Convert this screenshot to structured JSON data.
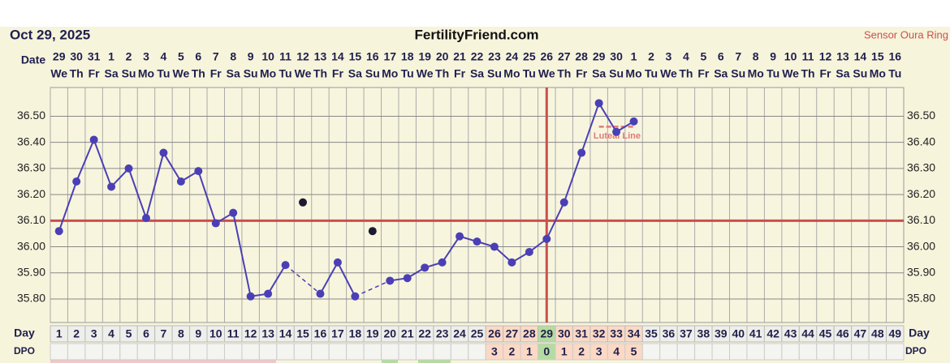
{
  "header": {
    "date": "Oct 29, 2025",
    "site": "FertilityFriend.com",
    "sensor": "Sensor Oura Ring"
  },
  "chart_data": {
    "type": "line",
    "row_labels": {
      "date": "Date",
      "day": "Day",
      "dpo": "DPO"
    },
    "dates": [
      "29",
      "30",
      "31",
      "1",
      "2",
      "3",
      "4",
      "5",
      "6",
      "7",
      "8",
      "9",
      "10",
      "11",
      "12",
      "13",
      "14",
      "15",
      "16",
      "17",
      "18",
      "19",
      "20",
      "21",
      "22",
      "23",
      "24",
      "25",
      "26",
      "27",
      "28",
      "29",
      "30",
      "1",
      "2",
      "3",
      "4",
      "5",
      "6",
      "7",
      "8",
      "9",
      "10",
      "11",
      "12",
      "13",
      "14",
      "15",
      "16"
    ],
    "weekdays": [
      "We",
      "Th",
      "Fr",
      "Sa",
      "Su",
      "Mo",
      "Tu",
      "We",
      "Th",
      "Fr",
      "Sa",
      "Su",
      "Mo",
      "Tu",
      "We",
      "Th",
      "Fr",
      "Sa",
      "Su",
      "Mo",
      "Tu",
      "We",
      "Th",
      "Fr",
      "Sa",
      "Su",
      "Mo",
      "Tu",
      "We",
      "Th",
      "Fr",
      "Sa",
      "Su",
      "Mo",
      "Tu",
      "We",
      "Th",
      "Fr",
      "Sa",
      "Su",
      "Mo",
      "Tu",
      "We",
      "Th",
      "Fr",
      "Sa",
      "Su",
      "Mo",
      "Tu"
    ],
    "x": [
      1,
      2,
      3,
      4,
      5,
      6,
      7,
      8,
      9,
      10,
      11,
      12,
      13,
      14,
      15,
      16,
      17,
      18,
      19,
      20,
      21,
      22,
      23,
      24,
      25,
      26,
      27,
      28,
      29,
      30,
      31,
      32,
      33,
      34,
      35,
      36,
      37,
      38,
      39,
      40,
      41,
      42,
      43,
      44,
      45,
      46,
      47,
      48,
      49
    ],
    "dpo": [
      null,
      null,
      null,
      null,
      null,
      null,
      null,
      null,
      null,
      null,
      null,
      null,
      null,
      null,
      null,
      null,
      null,
      null,
      null,
      null,
      null,
      null,
      null,
      null,
      null,
      3,
      2,
      1,
      0,
      1,
      2,
      3,
      4,
      5,
      null,
      null,
      null,
      null,
      null,
      null,
      null,
      null,
      null,
      null,
      null,
      null,
      null,
      null,
      null
    ],
    "series": [
      {
        "color": "#4b3fb5",
        "values": [
          36.06,
          36.25,
          36.41,
          36.23,
          36.3,
          36.11,
          36.36,
          36.25,
          36.29,
          36.09,
          36.13,
          35.81,
          35.82,
          35.93,
          null,
          35.82,
          35.94,
          35.81,
          null,
          35.87,
          35.88,
          35.92,
          35.94,
          36.04,
          36.02,
          36.0,
          35.94,
          35.98,
          36.03,
          36.17,
          36.36,
          36.55,
          36.44,
          36.48,
          null,
          null,
          null,
          null,
          null,
          null,
          null,
          null,
          null,
          null,
          null,
          null,
          null,
          null,
          null
        ]
      },
      {
        "color": "#1c1a33",
        "values": [
          null,
          null,
          null,
          null,
          null,
          null,
          null,
          null,
          null,
          null,
          null,
          null,
          null,
          null,
          36.17,
          null,
          null,
          null,
          36.06,
          null,
          null,
          null,
          null,
          null,
          null,
          null,
          null,
          null,
          null,
          null,
          null,
          null,
          null,
          null,
          null,
          null,
          null,
          null,
          null,
          null,
          null,
          null,
          null,
          null,
          null,
          null,
          null,
          null,
          null
        ]
      }
    ],
    "coverline": 36.1,
    "coverline_color": "#c9504c",
    "ovulation_day": 29,
    "luteal_line": {
      "label": "Luteal Line",
      "value": 36.46,
      "from_day": 32,
      "to_day": 34
    },
    "ylim": [
      35.71,
      36.61
    ],
    "yticks": [
      {
        "value": 35.8,
        "label": "35.80"
      },
      {
        "value": 35.9,
        "label": "35.90"
      },
      {
        "value": 36.0,
        "label": "36.00"
      },
      {
        "value": 36.1,
        "label": "36.10"
      },
      {
        "value": 36.2,
        "label": "36.20"
      },
      {
        "value": 36.3,
        "label": "36.30"
      },
      {
        "value": 36.4,
        "label": "36.40"
      },
      {
        "value": 36.5,
        "label": "36.50"
      }
    ],
    "grid": true
  }
}
